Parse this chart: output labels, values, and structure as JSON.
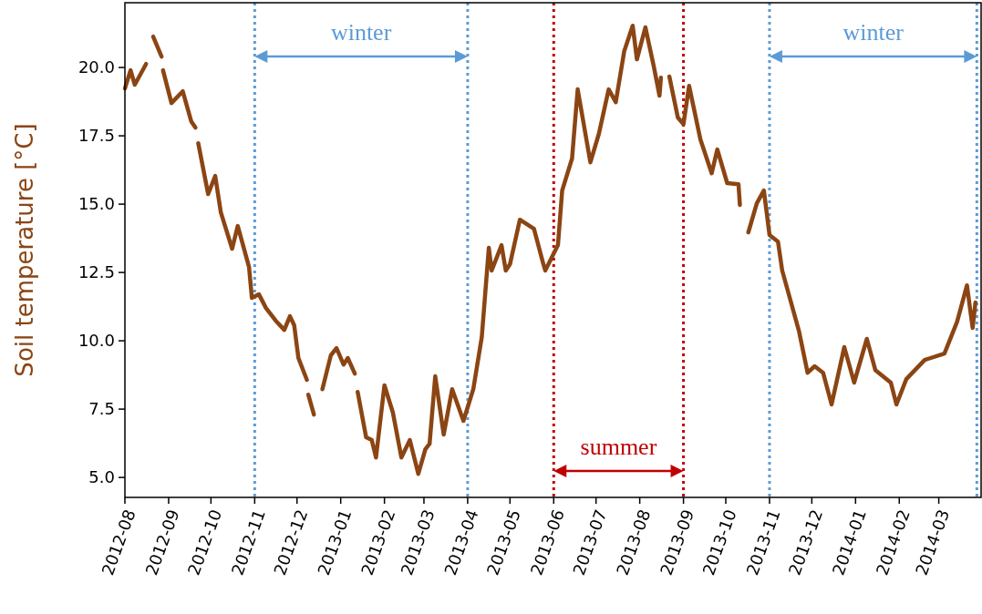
{
  "chart_data": {
    "type": "line",
    "ylabel": "Soil temperature [°C]",
    "series": [
      {
        "color": "#8b4513",
        "x": [
          "2012-08-01",
          "2012-08-05",
          "2012-08-08",
          "2012-08-16"
        ],
        "values": [
          19.23,
          19.9,
          19.37,
          20.13
        ]
      },
      {
        "color": "#8b4513",
        "x": [
          "2012-08-21",
          "2012-08-27"
        ],
        "values": [
          21.13,
          20.4
        ]
      },
      {
        "color": "#8b4513",
        "x": [
          "2012-08-28",
          "2012-09-03",
          "2012-09-11",
          "2012-09-17",
          "2012-09-20"
        ],
        "values": [
          19.9,
          18.7,
          19.13,
          18.03,
          17.8
        ]
      },
      {
        "color": "#8b4513",
        "x": [
          "2012-09-22",
          "2012-09-29",
          "2012-10-04",
          "2012-10-08",
          "2012-10-16",
          "2012-10-20",
          "2012-10-28",
          "2012-10-30",
          "2012-11-04",
          "2012-11-09",
          "2012-11-16",
          "2012-11-22",
          "2012-11-26",
          "2012-11-29",
          "2012-12-02",
          "2012-12-08"
        ],
        "values": [
          17.23,
          15.37,
          16.03,
          14.7,
          13.37,
          14.2,
          12.7,
          11.57,
          11.7,
          11.2,
          10.73,
          10.4,
          10.9,
          10.57,
          9.37,
          8.57
        ]
      },
      {
        "color": "#8b4513",
        "x": [
          "2012-12-09",
          "2012-12-13"
        ],
        "values": [
          8.03,
          7.3
        ]
      },
      {
        "color": "#8b4513",
        "x": [
          "2012-12-19",
          "2012-12-25",
          "2012-12-29",
          "2013-01-03",
          "2013-01-06",
          "2013-01-11"
        ],
        "values": [
          8.23,
          9.47,
          9.73,
          9.13,
          9.37,
          8.8
        ]
      },
      {
        "color": "#8b4513",
        "x": [
          "2013-01-13",
          "2013-01-19",
          "2013-01-23",
          "2013-01-26",
          "2013-02-01",
          "2013-02-07",
          "2013-02-13",
          "2013-02-19",
          "2013-02-25",
          "2013-03-02",
          "2013-03-05",
          "2013-03-09",
          "2013-03-15",
          "2013-03-21",
          "2013-03-29",
          "2013-04-05",
          "2013-04-11",
          "2013-04-16",
          "2013-04-18",
          "2013-04-25",
          "2013-04-28",
          "2013-05-01",
          "2013-05-08",
          "2013-05-18",
          "2013-05-24",
          "2013-05-26",
          "2013-06-04",
          "2013-06-07",
          "2013-06-14",
          "2013-06-18",
          "2013-06-27",
          "2013-07-03",
          "2013-07-10",
          "2013-07-15",
          "2013-07-21",
          "2013-07-27",
          "2013-07-30",
          "2013-08-05",
          "2013-08-11",
          "2013-08-15",
          "2013-08-16"
        ],
        "values": [
          8.13,
          6.47,
          6.37,
          5.73,
          8.37,
          7.37,
          5.73,
          6.37,
          5.13,
          6.03,
          6.23,
          8.7,
          6.57,
          8.23,
          7.07,
          8.23,
          10.13,
          13.4,
          12.57,
          13.5,
          12.57,
          12.8,
          14.43,
          14.1,
          12.93,
          12.57,
          13.5,
          15.5,
          16.67,
          19.2,
          16.53,
          17.57,
          19.2,
          18.73,
          20.6,
          21.53,
          20.3,
          21.47,
          20.03,
          18.97,
          19.63
        ]
      },
      {
        "color": "#8b4513",
        "x": [
          "2013-08-22",
          "2013-08-28",
          "2013-09-01",
          "2013-09-05",
          "2013-09-13",
          "2013-09-21",
          "2013-09-25",
          "2013-10-02",
          "2013-10-10",
          "2013-10-11"
        ],
        "values": [
          19.67,
          18.17,
          17.93,
          19.33,
          17.37,
          16.13,
          17.0,
          15.77,
          15.73,
          14.97
        ]
      },
      {
        "color": "#8b4513",
        "x": [
          "2013-10-17",
          "2013-10-23",
          "2013-10-28",
          "2013-11-01",
          "2013-11-07",
          "2013-11-10",
          "2013-11-22",
          "2013-11-28",
          "2013-12-03",
          "2013-12-09",
          "2013-12-15",
          "2013-12-24",
          "2013-12-31",
          "2014-01-09",
          "2014-01-15",
          "2014-01-26",
          "2014-01-30",
          "2014-02-06",
          "2014-02-19",
          "2014-03-05",
          "2014-03-14",
          "2014-03-21",
          "2014-03-25",
          "2014-03-27"
        ],
        "values": [
          13.97,
          15.03,
          15.5,
          13.87,
          13.63,
          12.57,
          10.33,
          8.83,
          9.07,
          8.83,
          7.67,
          9.77,
          8.47,
          10.07,
          8.93,
          8.47,
          7.67,
          8.6,
          9.3,
          9.53,
          10.7,
          12.03,
          10.47,
          11.4
        ]
      }
    ],
    "xlim": [
      "2012-08-01",
      "2014-03-31"
    ],
    "xticks": [
      {
        "value": "2012-08-01",
        "label": "2012-08"
      },
      {
        "value": "2012-09-01",
        "label": "2012-09"
      },
      {
        "value": "2012-10-01",
        "label": "2012-10"
      },
      {
        "value": "2012-11-01",
        "label": "2012-11"
      },
      {
        "value": "2012-12-01",
        "label": "2012-12"
      },
      {
        "value": "2013-01-01",
        "label": "2013-01"
      },
      {
        "value": "2013-02-01",
        "label": "2013-02"
      },
      {
        "value": "2013-03-01",
        "label": "2013-03"
      },
      {
        "value": "2013-04-01",
        "label": "2013-04"
      },
      {
        "value": "2013-05-01",
        "label": "2013-05"
      },
      {
        "value": "2013-06-01",
        "label": "2013-06"
      },
      {
        "value": "2013-07-01",
        "label": "2013-07"
      },
      {
        "value": "2013-08-01",
        "label": "2013-08"
      },
      {
        "value": "2013-09-01",
        "label": "2013-09"
      },
      {
        "value": "2013-10-01",
        "label": "2013-10"
      },
      {
        "value": "2013-11-01",
        "label": "2013-11"
      },
      {
        "value": "2013-12-01",
        "label": "2013-12"
      },
      {
        "value": "2014-01-01",
        "label": "2014-01"
      },
      {
        "value": "2014-02-01",
        "label": "2014-02"
      },
      {
        "value": "2014-03-01",
        "label": "2014-03"
      }
    ],
    "ylim": [
      4.27,
      22.37
    ],
    "yticks": [
      {
        "value": 5,
        "label": "5.0"
      },
      {
        "value": 7.5,
        "label": "7.5"
      },
      {
        "value": 10,
        "label": "10.0"
      },
      {
        "value": 12.5,
        "label": "12.5"
      },
      {
        "value": 15,
        "label": "15.0"
      },
      {
        "value": 17.5,
        "label": "17.5"
      },
      {
        "value": 20,
        "label": "20.0"
      }
    ],
    "ref_lines": [
      {
        "axis": "x",
        "value": "2012-11-01",
        "color": "#5b9bd5",
        "line_style": "dotted"
      },
      {
        "axis": "x",
        "value": "2013-04-01",
        "color": "#5b9bd5",
        "line_style": "dotted"
      },
      {
        "axis": "x",
        "value": "2013-06-01",
        "color": "#c00000",
        "line_style": "dotted"
      },
      {
        "axis": "x",
        "value": "2013-09-01",
        "color": "#c00000",
        "line_style": "dotted"
      },
      {
        "axis": "x",
        "value": "2013-11-01",
        "color": "#5b9bd5",
        "line_style": "dotted"
      },
      {
        "axis": "x",
        "value": "2014-03-28",
        "color": "#5b9bd5",
        "line_style": "dotted"
      }
    ],
    "annotations": [
      "winter",
      "summer",
      "winter"
    ],
    "line_style": "solid",
    "marker": "none",
    "grid": false
  }
}
